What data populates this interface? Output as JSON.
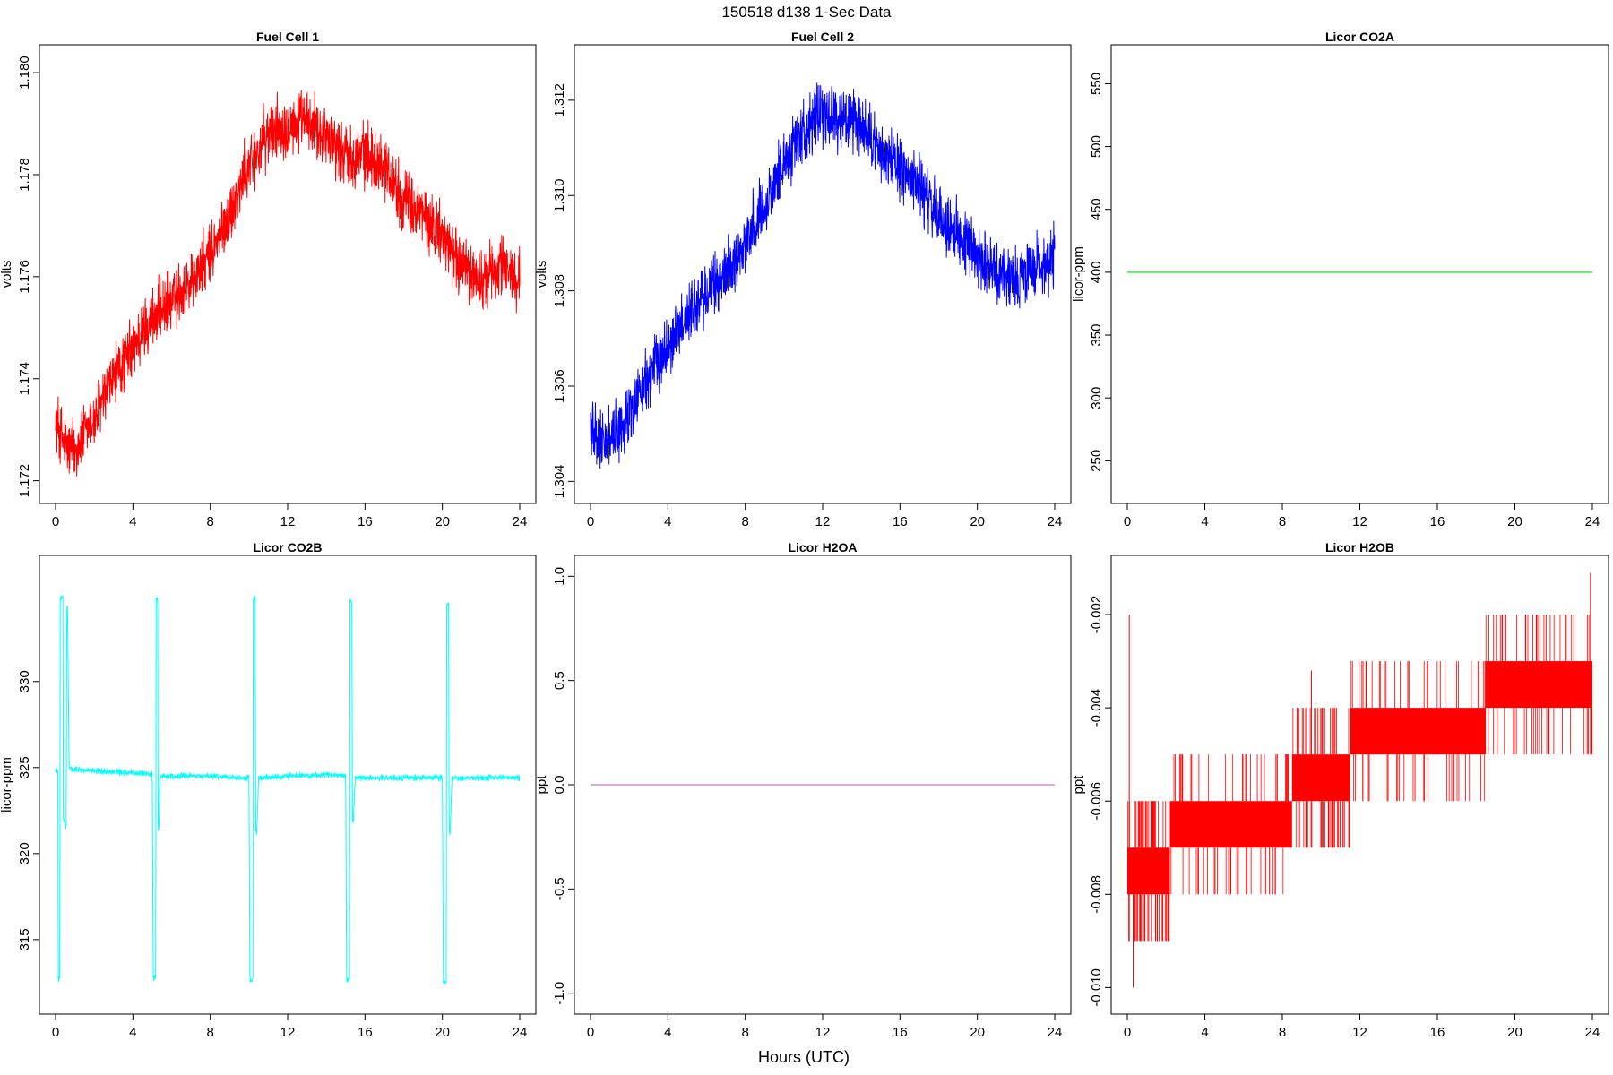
{
  "figure": {
    "title": "150518   d138   1-Sec Data",
    "xlabel": "Hours (UTC)"
  },
  "chart_data": [
    {
      "type": "line",
      "title": "Fuel Cell 1",
      "ylabel": "volts",
      "xlim": [
        0,
        24
      ],
      "ylim": [
        1.1718,
        1.1803
      ],
      "xticks": [
        0,
        4,
        8,
        12,
        16,
        20,
        24
      ],
      "yticks": [
        1.172,
        1.174,
        1.176,
        1.178,
        1.18
      ],
      "ytick_labels": [
        "1.172",
        "1.174",
        "1.176",
        "1.178",
        "1.180"
      ],
      "color": "#ff0000",
      "noise": 0.00055,
      "series": [
        {
          "x": [
            0,
            0.5,
            1,
            2,
            3,
            4,
            5,
            6,
            7,
            8,
            9,
            10,
            11,
            12,
            13,
            14,
            15,
            16,
            17,
            18,
            19,
            20,
            21,
            22,
            23,
            24
          ],
          "y": [
            1.1732,
            1.1727,
            1.1726,
            1.1732,
            1.174,
            1.1746,
            1.1752,
            1.1755,
            1.1759,
            1.1764,
            1.1772,
            1.1782,
            1.1788,
            1.179,
            1.179,
            1.1788,
            1.1784,
            1.1784,
            1.1782,
            1.1775,
            1.1772,
            1.1768,
            1.1762,
            1.1759,
            1.1762,
            1.176
          ]
        }
      ]
    },
    {
      "type": "line",
      "title": "Fuel Cell 2",
      "ylabel": "volts",
      "xlim": [
        0,
        24
      ],
      "ylim": [
        1.3038,
        1.3129
      ],
      "xticks": [
        0,
        4,
        8,
        12,
        16,
        20,
        24
      ],
      "yticks": [
        1.304,
        1.306,
        1.308,
        1.31,
        1.312
      ],
      "ytick_labels": [
        "1.304",
        "1.306",
        "1.308",
        "1.310",
        "1.312"
      ],
      "color": "#0000ff",
      "noise": 0.0006,
      "series": [
        {
          "x": [
            0,
            0.5,
            1,
            2,
            3,
            4,
            5,
            6,
            7,
            8,
            9,
            10,
            11,
            12,
            13,
            14,
            15,
            16,
            17,
            18,
            19,
            20,
            21,
            22,
            23,
            24
          ],
          "y": [
            1.3051,
            1.3049,
            1.3048,
            1.3054,
            1.3062,
            1.3068,
            1.3075,
            1.3079,
            1.3084,
            1.309,
            1.3098,
            1.3107,
            1.3114,
            1.3117,
            1.3116,
            1.3114,
            1.3109,
            1.3106,
            1.3102,
            1.3095,
            1.3092,
            1.3088,
            1.3084,
            1.3082,
            1.3085,
            1.3087
          ]
        }
      ]
    },
    {
      "type": "line",
      "title": "Licor CO2A",
      "ylabel": "licor-ppm",
      "xlim": [
        0,
        24
      ],
      "ylim": [
        226,
        571
      ],
      "xticks": [
        0,
        4,
        8,
        12,
        16,
        20,
        24
      ],
      "yticks": [
        250,
        300,
        350,
        400,
        450,
        500,
        550
      ],
      "ytick_labels": [
        "250",
        "300",
        "350",
        "400",
        "450",
        "500",
        "550"
      ],
      "color": "#00ff00",
      "noise": 0,
      "series": [
        {
          "x": [
            0,
            24
          ],
          "y": [
            400,
            400
          ]
        }
      ]
    },
    {
      "type": "line",
      "title": "Licor CO2B",
      "ylabel": "licor-ppm",
      "xlim": [
        0,
        24
      ],
      "ylim": [
        311.4,
        336.6
      ],
      "xticks": [
        0,
        4,
        8,
        12,
        16,
        20,
        24
      ],
      "yticks": [
        315,
        320,
        325,
        330
      ],
      "ytick_labels": [
        "315",
        "320",
        "325",
        "330"
      ],
      "color": "#00ffff",
      "noise": 0.15,
      "series": [
        {
          "x": [
            0,
            0.12,
            0.14,
            0.16,
            0.22,
            0.24,
            0.3,
            0.38,
            0.4,
            0.45,
            0.55,
            0.58,
            0.62,
            0.7,
            0.72,
            2,
            4,
            5.0,
            5.05,
            5.1,
            5.18,
            5.2,
            5.28,
            5.3,
            5.35,
            5.4,
            6,
            8,
            10.0,
            10.05,
            10.1,
            10.2,
            10.22,
            10.32,
            10.35,
            10.4,
            10.5,
            12,
            14,
            15.0,
            15.05,
            15.1,
            15.2,
            15.22,
            15.32,
            15.35,
            15.4,
            15.5,
            17,
            19,
            20.0,
            20.05,
            20.1,
            20.2,
            20.22,
            20.32,
            20.35,
            20.4,
            20.5,
            22,
            24
          ],
          "y": [
            324.8,
            324.8,
            312.8,
            312.7,
            312.8,
            334.9,
            334.9,
            334.9,
            322.0,
            321.9,
            321.5,
            334.3,
            334.3,
            325.0,
            324.9,
            324.8,
            324.7,
            324.6,
            312.8,
            312.7,
            312.8,
            334.8,
            334.8,
            321.5,
            321.5,
            324.5,
            324.5,
            324.5,
            324.4,
            312.7,
            312.6,
            312.7,
            334.8,
            334.8,
            321.2,
            321.2,
            324.4,
            324.5,
            324.6,
            324.5,
            312.7,
            312.6,
            312.7,
            334.7,
            334.7,
            321.9,
            321.9,
            324.4,
            324.4,
            324.4,
            324.4,
            312.6,
            312.5,
            312.6,
            334.5,
            334.5,
            321.2,
            321.2,
            324.4,
            324.4,
            324.4
          ]
        }
      ]
    },
    {
      "type": "line",
      "title": "Licor H2OA",
      "ylabel": "ppt",
      "xlim": [
        0,
        24
      ],
      "ylim": [
        -1.04,
        1.04
      ],
      "xticks": [
        0,
        4,
        8,
        12,
        16,
        20,
        24
      ],
      "yticks": [
        -1.0,
        -0.5,
        0.0,
        0.5,
        1.0
      ],
      "ytick_labels": [
        "-1.0",
        "-0.5",
        "0.0",
        "0.5",
        "1.0"
      ],
      "color": "#dd88dd",
      "noise": 0,
      "series": [
        {
          "x": [
            0,
            24
          ],
          "y": [
            0,
            0
          ]
        }
      ]
    },
    {
      "type": "line",
      "title": "Licor H2OB",
      "ylabel": "ppt",
      "xlim": [
        0,
        24
      ],
      "ylim": [
        -0.0103,
        -0.001
      ],
      "xticks": [
        0,
        4,
        8,
        12,
        16,
        20,
        24
      ],
      "yticks": [
        -0.01,
        -0.008,
        -0.006,
        -0.004,
        -0.002
      ],
      "ytick_labels": [
        "-0.010",
        "-0.008",
        "-0.006",
        "-0.004",
        "-0.002"
      ],
      "color": "#ff0000",
      "noise": 0,
      "bands": [
        {
          "x0": 0,
          "x1": 2.2,
          "lo": -0.008,
          "hi": -0.007
        },
        {
          "x0": 2.2,
          "x1": 8.5,
          "lo": -0.007,
          "hi": -0.006
        },
        {
          "x0": 8.5,
          "x1": 11.5,
          "lo": -0.006,
          "hi": -0.005
        },
        {
          "x0": 11.5,
          "x1": 18.5,
          "lo": -0.005,
          "hi": -0.004
        },
        {
          "x0": 18.5,
          "x1": 24,
          "lo": -0.004,
          "hi": -0.003
        }
      ],
      "spikes": [
        {
          "x": 0.1,
          "lo": -0.009,
          "hi": -0.002
        },
        {
          "x": 0.3,
          "lo": -0.01,
          "hi": -0.008
        },
        {
          "x": 1.8,
          "lo": -0.009,
          "hi": -0.008
        },
        {
          "x": 9.5,
          "lo": -0.006,
          "hi": -0.0032
        },
        {
          "x": 23.9,
          "lo": -0.004,
          "hi": -0.0011
        }
      ]
    }
  ]
}
